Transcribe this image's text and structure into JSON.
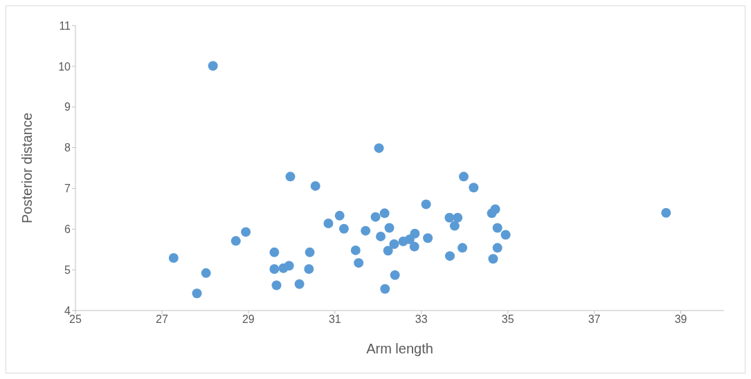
{
  "chart_data": {
    "type": "scatter",
    "xlabel": "Arm length",
    "ylabel": "Posterior distance",
    "xlim": [
      25,
      40
    ],
    "xticks": [
      25,
      27,
      29,
      31,
      33,
      35,
      37,
      39
    ],
    "ylim": [
      4,
      11
    ],
    "yticks": [
      4,
      5,
      6,
      7,
      8,
      9,
      10,
      11
    ],
    "grid": false,
    "legend": false,
    "marker": "circle",
    "series": [
      {
        "color": "#5b9bd5",
        "x": [
          27.27,
          28.02,
          27.81,
          28.18,
          28.71,
          28.94,
          29.6,
          29.6,
          29.65,
          29.81,
          29.94,
          29.97,
          30.18,
          30.4,
          30.42,
          30.55,
          30.85,
          31.11,
          31.21,
          31.48,
          31.55,
          31.71,
          31.94,
          32.02,
          32.06,
          32.15,
          32.16,
          32.23,
          32.26,
          32.37,
          32.39,
          32.58,
          32.73,
          32.84,
          32.85,
          33.11,
          33.15,
          33.66,
          33.65,
          33.77,
          33.84,
          33.95,
          33.98,
          34.21,
          34.63,
          34.66,
          34.71,
          34.76,
          34.76,
          34.95,
          38.66
        ],
        "values": [
          5.29,
          4.92,
          4.42,
          10.01,
          5.71,
          5.93,
          5.43,
          5.02,
          4.62,
          5.04,
          5.1,
          7.29,
          4.65,
          5.02,
          5.43,
          7.06,
          6.14,
          6.33,
          6.01,
          5.48,
          5.17,
          5.96,
          6.3,
          7.99,
          5.82,
          6.39,
          4.53,
          5.47,
          6.03,
          5.63,
          4.87,
          5.7,
          5.75,
          5.57,
          5.89,
          6.61,
          5.78,
          5.34,
          6.28,
          6.08,
          6.28,
          5.54,
          7.29,
          7.02,
          6.39,
          5.27,
          6.49,
          6.03,
          5.54,
          5.86,
          6.4
        ]
      }
    ]
  }
}
